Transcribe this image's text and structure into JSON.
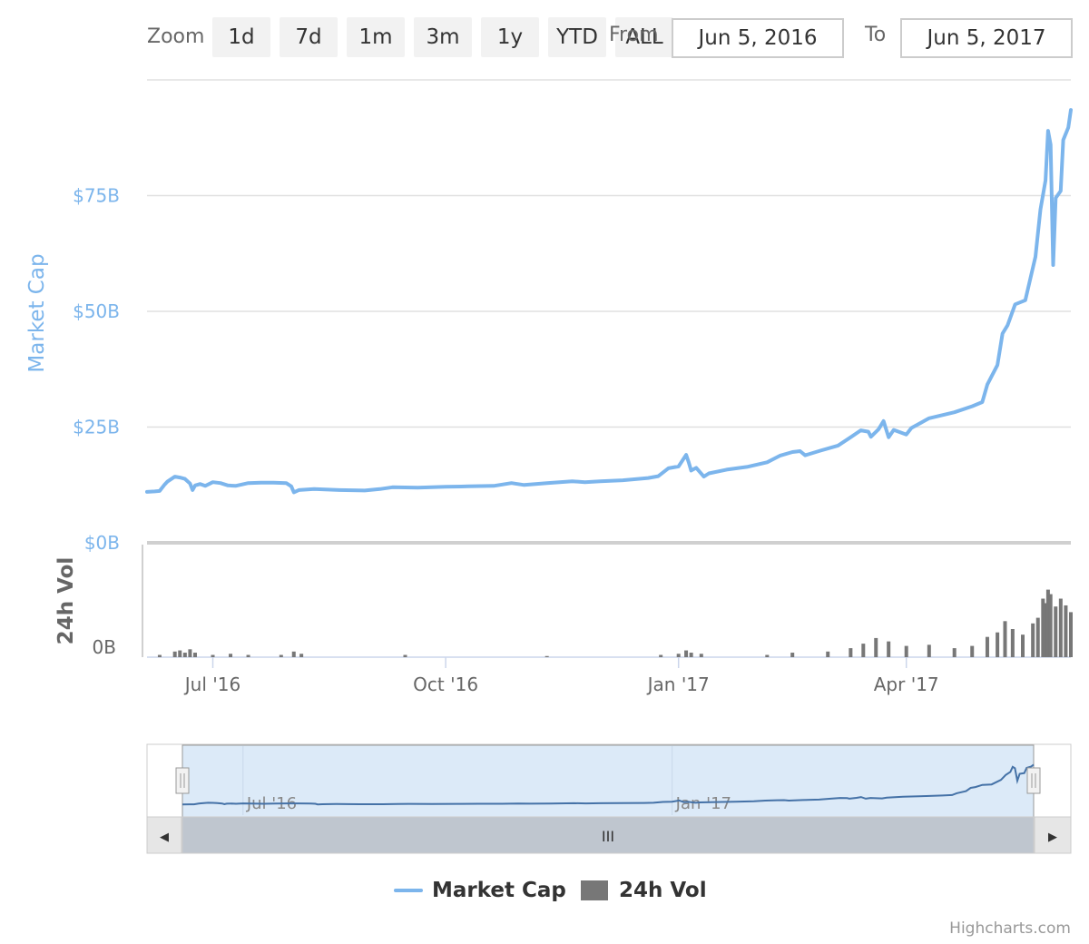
{
  "range_selector": {
    "zoom_label": "Zoom",
    "buttons": [
      "1d",
      "7d",
      "1m",
      "3m",
      "1y",
      "YTD",
      "ALL"
    ],
    "from_label": "From",
    "from_value": "Jun 5, 2016",
    "to_label": "To",
    "to_value": "Jun 5, 2017"
  },
  "colors": {
    "market_cap": "#7cb5ec",
    "volume": "#777777",
    "navigator_line": "#4572a7",
    "navigator_fill": "#dceaf8"
  },
  "chart_data": {
    "type": "line",
    "x_start": "2016-06-05",
    "x_end": "2017-06-05",
    "series": [
      {
        "name": "Market Cap",
        "unit": "USD billions",
        "points": [
          [
            "2016-06-05",
            11.0
          ],
          [
            "2016-06-08",
            11.1
          ],
          [
            "2016-06-10",
            11.2
          ],
          [
            "2016-06-12",
            12.6
          ],
          [
            "2016-06-13",
            13.2
          ],
          [
            "2016-06-16",
            14.3
          ],
          [
            "2016-06-18",
            14.1
          ],
          [
            "2016-06-20",
            13.8
          ],
          [
            "2016-06-22",
            12.8
          ],
          [
            "2016-06-23",
            11.4
          ],
          [
            "2016-06-24",
            12.4
          ],
          [
            "2016-06-26",
            12.7
          ],
          [
            "2016-06-28",
            12.3
          ],
          [
            "2016-07-01",
            13.1
          ],
          [
            "2016-07-04",
            12.9
          ],
          [
            "2016-07-07",
            12.4
          ],
          [
            "2016-07-10",
            12.3
          ],
          [
            "2016-07-15",
            12.9
          ],
          [
            "2016-07-20",
            13.0
          ],
          [
            "2016-07-25",
            13.0
          ],
          [
            "2016-07-30",
            12.9
          ],
          [
            "2016-08-01",
            12.2
          ],
          [
            "2016-08-02",
            10.9
          ],
          [
            "2016-08-04",
            11.4
          ],
          [
            "2016-08-10",
            11.6
          ],
          [
            "2016-08-20",
            11.4
          ],
          [
            "2016-08-30",
            11.3
          ],
          [
            "2016-09-05",
            11.6
          ],
          [
            "2016-09-10",
            12.0
          ],
          [
            "2016-09-20",
            11.9
          ],
          [
            "2016-10-01",
            12.1
          ],
          [
            "2016-10-10",
            12.2
          ],
          [
            "2016-10-20",
            12.3
          ],
          [
            "2016-10-27",
            12.9
          ],
          [
            "2016-11-01",
            12.5
          ],
          [
            "2016-11-10",
            12.9
          ],
          [
            "2016-11-20",
            13.3
          ],
          [
            "2016-11-25",
            13.1
          ],
          [
            "2016-12-01",
            13.3
          ],
          [
            "2016-12-10",
            13.5
          ],
          [
            "2016-12-20",
            14.0
          ],
          [
            "2016-12-24",
            14.4
          ],
          [
            "2016-12-28",
            16.1
          ],
          [
            "2017-01-01",
            16.5
          ],
          [
            "2017-01-04",
            19.0
          ],
          [
            "2017-01-05",
            17.4
          ],
          [
            "2017-01-06",
            15.6
          ],
          [
            "2017-01-08",
            16.2
          ],
          [
            "2017-01-11",
            14.3
          ],
          [
            "2017-01-13",
            15.0
          ],
          [
            "2017-01-20",
            15.8
          ],
          [
            "2017-01-28",
            16.4
          ],
          [
            "2017-02-05",
            17.4
          ],
          [
            "2017-02-10",
            18.8
          ],
          [
            "2017-02-15",
            19.6
          ],
          [
            "2017-02-18",
            19.8
          ],
          [
            "2017-02-20",
            18.9
          ],
          [
            "2017-02-26",
            19.9
          ],
          [
            "2017-03-05",
            21.0
          ],
          [
            "2017-03-10",
            22.8
          ],
          [
            "2017-03-14",
            24.3
          ],
          [
            "2017-03-17",
            24.0
          ],
          [
            "2017-03-18",
            22.9
          ],
          [
            "2017-03-21",
            24.5
          ],
          [
            "2017-03-23",
            26.3
          ],
          [
            "2017-03-25",
            22.8
          ],
          [
            "2017-03-27",
            24.4
          ],
          [
            "2017-04-01",
            23.4
          ],
          [
            "2017-04-03",
            24.8
          ],
          [
            "2017-04-10",
            26.9
          ],
          [
            "2017-04-20",
            28.2
          ],
          [
            "2017-04-27",
            29.5
          ],
          [
            "2017-05-01",
            30.4
          ],
          [
            "2017-05-03",
            34.2
          ],
          [
            "2017-05-07",
            38.4
          ],
          [
            "2017-05-09",
            45.2
          ],
          [
            "2017-05-11",
            47.0
          ],
          [
            "2017-05-14",
            51.5
          ],
          [
            "2017-05-18",
            52.4
          ],
          [
            "2017-05-22",
            61.8
          ],
          [
            "2017-05-24",
            72.0
          ],
          [
            "2017-05-26",
            78.3
          ],
          [
            "2017-05-27",
            89.0
          ],
          [
            "2017-05-28",
            86.0
          ],
          [
            "2017-05-29",
            60.0
          ],
          [
            "2017-05-30",
            74.5
          ],
          [
            "2017-06-01",
            76.0
          ],
          [
            "2017-06-02",
            87.0
          ],
          [
            "2017-06-04",
            89.7
          ],
          [
            "2017-06-05",
            93.5
          ]
        ]
      },
      {
        "name": "24h Vol",
        "unit": "relative",
        "points": [
          [
            "2016-06-10",
            0.02
          ],
          [
            "2016-06-16",
            0.05
          ],
          [
            "2016-06-18",
            0.06
          ],
          [
            "2016-06-20",
            0.04
          ],
          [
            "2016-06-22",
            0.07
          ],
          [
            "2016-06-24",
            0.04
          ],
          [
            "2016-07-01",
            0.02
          ],
          [
            "2016-07-08",
            0.03
          ],
          [
            "2016-07-15",
            0.02
          ],
          [
            "2016-07-28",
            0.02
          ],
          [
            "2016-08-02",
            0.05
          ],
          [
            "2016-08-05",
            0.03
          ],
          [
            "2016-09-15",
            0.02
          ],
          [
            "2016-11-10",
            0.01
          ],
          [
            "2016-12-25",
            0.02
          ],
          [
            "2017-01-01",
            0.03
          ],
          [
            "2017-01-04",
            0.06
          ],
          [
            "2017-01-06",
            0.04
          ],
          [
            "2017-01-10",
            0.03
          ],
          [
            "2017-02-05",
            0.02
          ],
          [
            "2017-02-15",
            0.04
          ],
          [
            "2017-03-01",
            0.05
          ],
          [
            "2017-03-10",
            0.08
          ],
          [
            "2017-03-15",
            0.12
          ],
          [
            "2017-03-20",
            0.17
          ],
          [
            "2017-03-25",
            0.14
          ],
          [
            "2017-04-01",
            0.1
          ],
          [
            "2017-04-10",
            0.11
          ],
          [
            "2017-04-20",
            0.08
          ],
          [
            "2017-04-27",
            0.1
          ],
          [
            "2017-05-03",
            0.18
          ],
          [
            "2017-05-07",
            0.22
          ],
          [
            "2017-05-10",
            0.32
          ],
          [
            "2017-05-13",
            0.25
          ],
          [
            "2017-05-17",
            0.2
          ],
          [
            "2017-05-21",
            0.3
          ],
          [
            "2017-05-23",
            0.35
          ],
          [
            "2017-05-25",
            0.52
          ],
          [
            "2017-05-26",
            0.48
          ],
          [
            "2017-05-27",
            0.6
          ],
          [
            "2017-05-28",
            0.56
          ],
          [
            "2017-05-30",
            0.45
          ],
          [
            "2017-06-01",
            0.52
          ],
          [
            "2017-06-03",
            0.46
          ],
          [
            "2017-06-05",
            0.4
          ]
        ]
      }
    ],
    "yaxis_label": "Market Cap",
    "yaxis_ticks": [
      "$0B",
      "$25B",
      "$50B",
      "$75B"
    ],
    "ylim": [
      0,
      100
    ],
    "volume_axis_label": "24h Vol",
    "volume_axis_ticks": [
      "0B"
    ],
    "xaxis_ticks": [
      {
        "date": "2016-07-01",
        "label": "Jul '16"
      },
      {
        "date": "2016-10-01",
        "label": "Oct '16"
      },
      {
        "date": "2017-01-01",
        "label": "Jan '17"
      },
      {
        "date": "2017-04-01",
        "label": "Apr '17"
      }
    ],
    "navigator_ticks": [
      {
        "date": "2016-07-01",
        "label": "Jul '16"
      },
      {
        "date": "2017-01-01",
        "label": "Jan '17"
      }
    ],
    "grid": true,
    "legend_position": "bottom-center"
  },
  "navigator": {
    "scroll_handle_glyph": "III",
    "left_arrow": "◀",
    "right_arrow": "▶"
  },
  "credits": "Highcharts.com"
}
